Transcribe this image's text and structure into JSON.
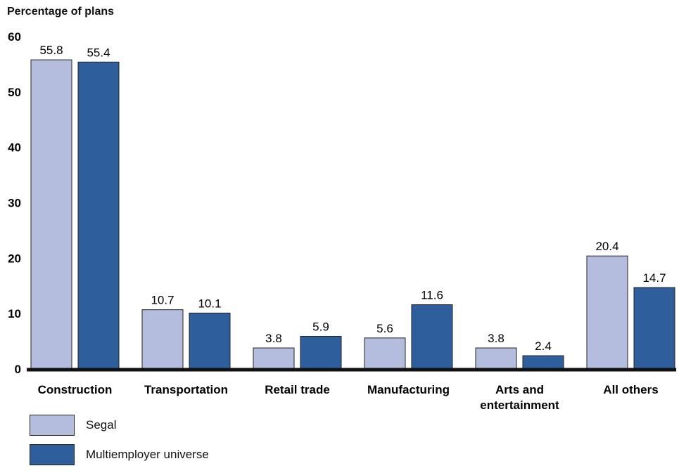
{
  "chart_data": {
    "type": "bar",
    "ylabel": "Percentage of plans",
    "ylim": [
      0,
      60
    ],
    "yticks": [
      0,
      10,
      20,
      30,
      40,
      50,
      60
    ],
    "categories": [
      [
        "Construction"
      ],
      [
        "Transportation"
      ],
      [
        "Retail trade"
      ],
      [
        "Manufacturing"
      ],
      [
        "Arts and",
        "entertainment"
      ],
      [
        "All others"
      ]
    ],
    "series": [
      {
        "name": "Segal",
        "color": "#b4bddd",
        "values": [
          55.8,
          10.7,
          3.8,
          5.6,
          3.8,
          20.4
        ]
      },
      {
        "name": "Multiemployer universe",
        "color": "#2e5e9c",
        "values": [
          55.4,
          10.1,
          5.9,
          11.6,
          2.4,
          14.7
        ]
      }
    ],
    "value_labels": [
      [
        "55.8",
        "10.7",
        "3.8",
        "5.6",
        "3.8",
        "20.4"
      ],
      [
        "55.4",
        "10.1",
        "5.9",
        "11.6",
        "2.4",
        "14.7"
      ]
    ],
    "legend_position": "bottom-left",
    "grid": false
  }
}
